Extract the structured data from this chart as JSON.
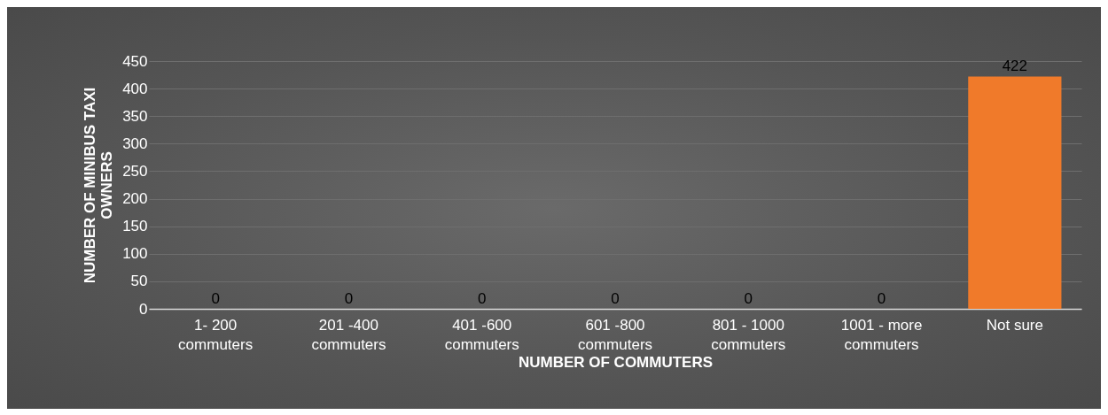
{
  "chart_data": {
    "type": "bar",
    "xlabel": "NUMBER OF COMMUTERS",
    "ylabel": "NUMBER OF MINIBUS TAXI OWNERS",
    "categories": [
      "1- 200 commuters",
      "201 -400 commuters",
      "401 -600 commuters",
      "601 -800 commuters",
      "801 - 1000 commuters",
      "1001 - more commuters",
      "Not sure"
    ],
    "values": [
      0,
      0,
      0,
      0,
      0,
      0,
      422
    ],
    "color": "#f07a2a",
    "ylim": [
      0,
      450
    ],
    "yticks": [
      0,
      50,
      100,
      150,
      200,
      250,
      300,
      350,
      400,
      450
    ],
    "grid": "y",
    "data_labels": true
  }
}
